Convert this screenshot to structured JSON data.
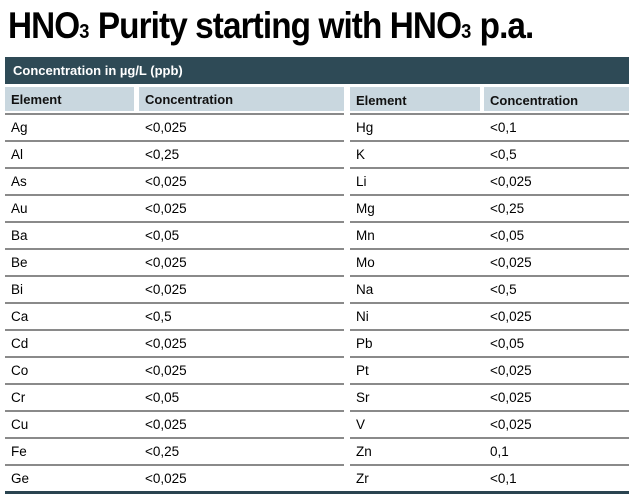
{
  "title": {
    "p1": "HNO",
    "sub1": "3",
    "p2": " Purity starting with HNO",
    "sub2": "3",
    "p3": " p.a."
  },
  "band": {
    "label": "Concentration in µg/L (ppb)"
  },
  "tables": [
    {
      "headers": {
        "element": "Element",
        "concentration": "Concentration"
      },
      "rows": [
        {
          "element": "Ag",
          "concentration": "<0,025"
        },
        {
          "element": "Al",
          "concentration": "<0,25"
        },
        {
          "element": "As",
          "concentration": "<0,025"
        },
        {
          "element": "Au",
          "concentration": "<0,025"
        },
        {
          "element": "Ba",
          "concentration": "<0,05"
        },
        {
          "element": "Be",
          "concentration": "<0,025"
        },
        {
          "element": "Bi",
          "concentration": "<0,025"
        },
        {
          "element": "Ca",
          "concentration": "<0,5"
        },
        {
          "element": "Cd",
          "concentration": "<0,025"
        },
        {
          "element": "Co",
          "concentration": "<0,025"
        },
        {
          "element": "Cr",
          "concentration": "<0,05"
        },
        {
          "element": "Cu",
          "concentration": "<0,025"
        },
        {
          "element": "Fe",
          "concentration": "<0,25"
        },
        {
          "element": "Ge",
          "concentration": "<0,025"
        }
      ]
    },
    {
      "headers": {
        "element": "Element",
        "concentration": "Concentration"
      },
      "rows": [
        {
          "element": "Hg",
          "concentration": "<0,1"
        },
        {
          "element": "K",
          "concentration": "<0,5"
        },
        {
          "element": "Li",
          "concentration": "<0,025"
        },
        {
          "element": "Mg",
          "concentration": "<0,25"
        },
        {
          "element": "Mn",
          "concentration": "<0,05"
        },
        {
          "element": "Mo",
          "concentration": "<0,025"
        },
        {
          "element": "Na",
          "concentration": "<0,5"
        },
        {
          "element": "Ni",
          "concentration": "<0,025"
        },
        {
          "element": "Pb",
          "concentration": "<0,05"
        },
        {
          "element": "Pt",
          "concentration": "<0,025"
        },
        {
          "element": "Sr",
          "concentration": "<0,025"
        },
        {
          "element": "V",
          "concentration": "<0,025"
        },
        {
          "element": "Zn",
          "concentration": "0,1"
        },
        {
          "element": "Zr",
          "concentration": "<0,1"
        }
      ]
    }
  ],
  "colors": {
    "band_bg": "#2e4a56",
    "header_row_bg": "#c9d7df",
    "row_separator": "#8a8a8a",
    "bottom_border": "#2a4450",
    "title_text": "#000000",
    "band_text": "#ffffff"
  }
}
